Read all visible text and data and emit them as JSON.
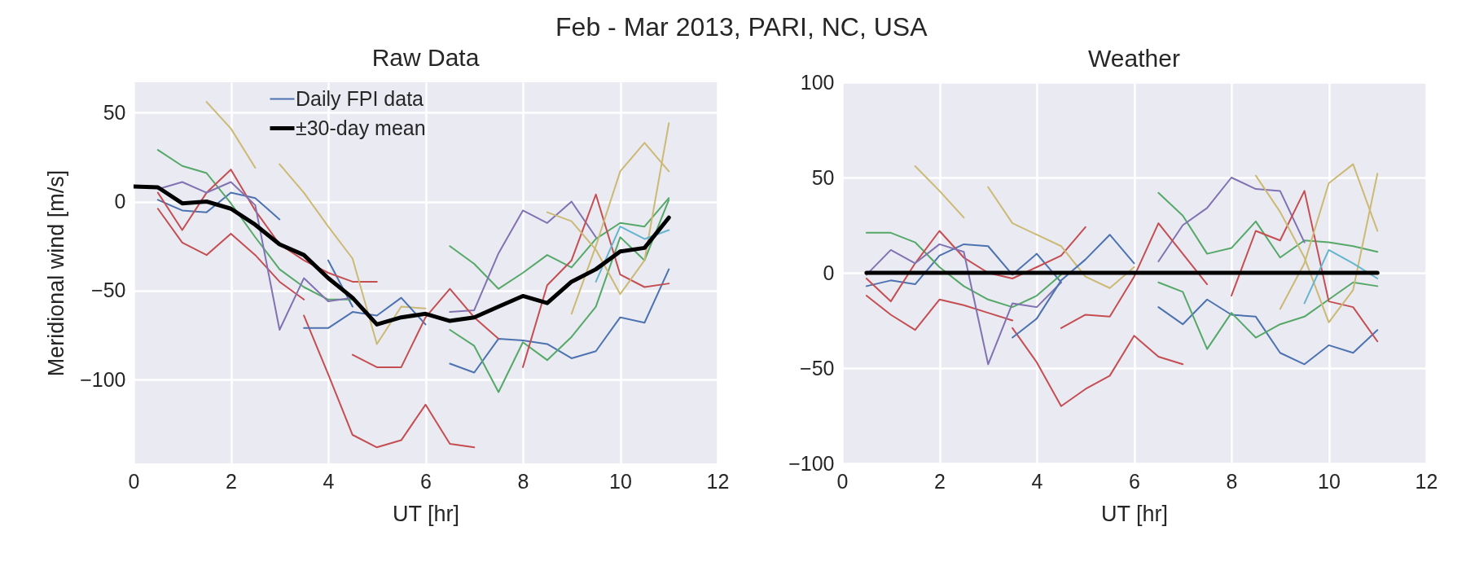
{
  "chart_data": [
    {
      "type": "line",
      "title": "Raw Data",
      "annotations": [
        "Feb - Mar 2013, PARI, NC, USA"
      ],
      "xlabel": "UT [hr]",
      "ylabel": "Meridional wind [m/s]",
      "xlim": [
        0,
        12
      ],
      "xticks": [
        0,
        2,
        4,
        6,
        8,
        10,
        12
      ],
      "ylim": [
        -147,
        67
      ],
      "yticks": [
        -100,
        -50,
        0,
        50
      ],
      "grid": true,
      "legend": "top",
      "series": [
        {
          "name": "Daily FPI data",
          "color": "#4c72b0",
          "x": [
            0.5,
            1,
            1.5,
            2,
            2.5,
            3,
            3.5,
            4,
            4.5
          ],
          "values": [
            1,
            -5,
            -6,
            5,
            2,
            -10,
            null,
            -33,
            -59
          ]
        },
        {
          "color": "#55a868",
          "x": [
            0.5,
            1,
            1.5,
            2,
            2.5,
            3,
            3.5,
            4,
            4.5
          ],
          "values": [
            29,
            20,
            16,
            -1,
            -20,
            -38,
            -48,
            -55,
            -55
          ]
        },
        {
          "color": "#c44e52",
          "x": [
            0.5,
            1,
            1.5,
            2,
            2.5,
            3,
            3.5
          ],
          "values": [
            -4,
            -23,
            -30,
            -18,
            -30,
            -45,
            -55
          ]
        },
        {
          "color": "#c44e52",
          "x": [
            0.5,
            1,
            1.5,
            2,
            2.5,
            3,
            3.5,
            4,
            4.5,
            5
          ],
          "values": [
            5,
            -16,
            5,
            18,
            -5,
            -24,
            -33,
            -40,
            -45,
            -45
          ]
        },
        {
          "color": "#ccb974",
          "x": [
            1.5,
            2,
            2.5
          ],
          "values": [
            56,
            41,
            19
          ]
        },
        {
          "color": "#ccb974",
          "x": [
            3,
            3.5,
            4,
            4.5,
            5,
            5.5,
            6
          ],
          "values": [
            21,
            5,
            -14,
            -32,
            -80,
            -59,
            -60
          ]
        },
        {
          "color": "#8172b2",
          "x": [
            0.5,
            1,
            1.5,
            2,
            2.5,
            3,
            3.5,
            4,
            4.5
          ],
          "values": [
            7,
            11,
            5,
            11,
            -2,
            -72,
            -43,
            -56,
            -54
          ]
        },
        {
          "color": "#c44e52",
          "x": [
            3.5,
            4,
            4.5,
            5,
            5.5,
            6,
            6.5,
            7
          ],
          "values": [
            -64,
            -97,
            -131,
            -138,
            -134,
            -114,
            -136,
            -138
          ]
        },
        {
          "color": "#4c72b0",
          "x": [
            3.5,
            4,
            4.5,
            5,
            5.5,
            6
          ],
          "values": [
            -71,
            -71,
            -62,
            -64,
            -54,
            -69
          ]
        },
        {
          "color": "#4c72b0",
          "x": [
            6.5,
            7,
            7.5,
            8,
            8.5,
            9,
            9.5,
            10,
            10.5,
            11
          ],
          "values": [
            -91,
            -96,
            -77,
            -78,
            -80,
            -88,
            -84,
            -65,
            -68,
            -38
          ]
        },
        {
          "color": "#55a868",
          "x": [
            6.5,
            7,
            7.5,
            8,
            8.5,
            9,
            9.5,
            10,
            10.5,
            11
          ],
          "values": [
            -72,
            -81,
            -107,
            -79,
            -89,
            -76,
            -59,
            -20,
            -33,
            1
          ]
        },
        {
          "color": "#55a868",
          "x": [
            6.5,
            7,
            7.5,
            8,
            8.5,
            9,
            9.5,
            10,
            10.5,
            11
          ],
          "values": [
            -25,
            -35,
            -49,
            -40,
            -30,
            -37,
            -21,
            -12,
            -14,
            2
          ]
        },
        {
          "color": "#8172b2",
          "x": [
            6.5,
            7,
            7.5,
            8,
            8.5,
            9,
            9.5
          ],
          "values": [
            -62,
            -61,
            -29,
            -5,
            -12,
            0,
            -20
          ]
        },
        {
          "color": "#c44e52",
          "x": [
            8,
            8.5,
            9,
            9.5,
            10,
            10.5,
            11
          ],
          "values": [
            -93,
            -47,
            -33,
            4,
            -41,
            -48,
            -46
          ]
        },
        {
          "color": "#ccb974",
          "x": [
            8.5,
            9,
            9.5,
            10,
            10.5,
            11
          ],
          "values": [
            -6,
            -11,
            -27,
            -52,
            -33,
            44
          ]
        },
        {
          "color": "#ccb974",
          "x": [
            9,
            9.5,
            10,
            10.5,
            11
          ],
          "values": [
            -63,
            -25,
            17,
            33,
            17
          ]
        },
        {
          "color": "#64b5cd",
          "x": [
            9.5,
            10,
            10.5,
            11
          ],
          "values": [
            -45,
            -14,
            -21,
            -16
          ]
        },
        {
          "color": "#c44e52",
          "x": [
            4.5,
            5,
            5.5,
            6,
            6.5,
            7,
            7.5
          ],
          "values": [
            -86,
            -93,
            -93,
            -65,
            -49,
            -65,
            -77
          ]
        },
        {
          "name": "±30-day mean",
          "color": "#000000",
          "x": [
            0,
            0.5,
            1,
            1.5,
            2,
            2.5,
            3,
            3.5,
            4,
            4.5,
            5,
            5.5,
            6,
            6.5,
            7,
            7.5,
            8,
            8.5,
            9,
            9.5,
            10,
            10.5,
            11
          ],
          "values": [
            8.5,
            8,
            -1,
            0,
            -4,
            -13,
            -24,
            -30,
            -43,
            -54,
            -69,
            -65,
            -63,
            -67,
            -65,
            -59,
            -53,
            -57,
            -45,
            -38,
            -28,
            -26,
            -9
          ]
        }
      ]
    },
    {
      "type": "line",
      "title": "Weather",
      "xlabel": "UT [hr]",
      "xlim": [
        0,
        12
      ],
      "xticks": [
        0,
        2,
        4,
        6,
        8,
        10,
        12
      ],
      "ylim": [
        -100,
        100
      ],
      "yticks": [
        -100,
        -50,
        0,
        50,
        100
      ],
      "grid": true,
      "series": [
        {
          "color": "#4c72b0",
          "x": [
            0.5,
            1,
            1.5,
            2,
            2.5,
            3,
            3.5,
            4,
            4.5
          ],
          "values": [
            -7,
            -4,
            -6,
            9,
            15,
            14,
            -1,
            10,
            -5
          ]
        },
        {
          "color": "#55a868",
          "x": [
            0.5,
            1,
            1.5,
            2,
            2.5,
            3,
            3.5,
            4,
            4.5
          ],
          "values": [
            21,
            21,
            16,
            3,
            -7,
            -14,
            -18,
            -12,
            -1
          ]
        },
        {
          "color": "#c44e52",
          "x": [
            0.5,
            1,
            1.5,
            2,
            2.5,
            3,
            3.5
          ],
          "values": [
            -12,
            -22,
            -30,
            -14,
            -17,
            -21,
            -25
          ]
        },
        {
          "color": "#c44e52",
          "x": [
            0.5,
            1,
            1.5,
            2,
            2.5,
            3,
            3.5,
            4,
            4.5,
            5
          ],
          "values": [
            -3,
            -15,
            5,
            22,
            8,
            0,
            -3,
            3,
            9,
            24
          ]
        },
        {
          "color": "#ccb974",
          "x": [
            1.5,
            2,
            2.5
          ],
          "values": [
            56,
            43,
            29
          ]
        },
        {
          "color": "#ccb974",
          "x": [
            3,
            3.5,
            4,
            4.5,
            5,
            5.5,
            6
          ],
          "values": [
            45,
            26,
            20,
            14,
            -2,
            -8,
            3
          ]
        },
        {
          "color": "#8172b2",
          "x": [
            0.5,
            1,
            1.5,
            2,
            2.5,
            3,
            3.5,
            4,
            4.5
          ],
          "values": [
            -1,
            12,
            5,
            15,
            11,
            -48,
            -16,
            -18,
            -5
          ]
        },
        {
          "color": "#c44e52",
          "x": [
            3.5,
            4,
            4.5,
            5,
            5.5,
            6,
            6.5,
            7
          ],
          "values": [
            -29,
            -47,
            -70,
            -61,
            -54,
            -33,
            -44,
            -48
          ]
        },
        {
          "color": "#4c72b0",
          "x": [
            3.5,
            4,
            4.5,
            5,
            5.5,
            6
          ],
          "values": [
            -34,
            -24,
            -4,
            7,
            20,
            5
          ]
        },
        {
          "color": "#4c72b0",
          "x": [
            6.5,
            7,
            7.5,
            8,
            8.5,
            9,
            9.5,
            10,
            10.5,
            11
          ],
          "values": [
            -18,
            -27,
            -14,
            -22,
            -23,
            -42,
            -48,
            -38,
            -42,
            -30
          ]
        },
        {
          "color": "#55a868",
          "x": [
            6.5,
            7,
            7.5,
            8,
            8.5,
            9,
            9.5,
            10,
            10.5,
            11
          ],
          "values": [
            -5,
            -10,
            -40,
            -21,
            -34,
            -27,
            -23,
            -14,
            -5,
            -7
          ]
        },
        {
          "color": "#55a868",
          "x": [
            6.5,
            7,
            7.5,
            8,
            8.5,
            9,
            9.5,
            10,
            10.5,
            11
          ],
          "values": [
            42,
            30,
            10,
            13,
            27,
            8,
            17,
            16,
            14,
            11
          ]
        },
        {
          "color": "#8172b2",
          "x": [
            6.5,
            7,
            7.5,
            8,
            8.5,
            9,
            9.5
          ],
          "values": [
            6,
            25,
            34,
            50,
            44,
            43,
            16
          ]
        },
        {
          "color": "#c44e52",
          "x": [
            8,
            8.5,
            9,
            9.5,
            10,
            10.5,
            11
          ],
          "values": [
            -12,
            22,
            17,
            43,
            -15,
            -18,
            -36
          ]
        },
        {
          "color": "#ccb974",
          "x": [
            8.5,
            9,
            9.5,
            10,
            10.5,
            11
          ],
          "values": [
            51,
            32,
            8,
            -26,
            -9,
            52
          ]
        },
        {
          "color": "#ccb974",
          "x": [
            9,
            9.5,
            10,
            10.5,
            11
          ],
          "values": [
            -19,
            5,
            47,
            57,
            22
          ]
        },
        {
          "color": "#64b5cd",
          "x": [
            9.5,
            10,
            10.5,
            11
          ],
          "values": [
            -16,
            12,
            5,
            -3
          ]
        },
        {
          "color": "#c44e52",
          "x": [
            4.5,
            5,
            5.5,
            6,
            6.5,
            7,
            7.5
          ],
          "values": [
            -29,
            -22,
            -23,
            -2,
            26,
            10,
            -6
          ]
        },
        {
          "color": "#000000",
          "x": [
            0.5,
            1,
            1.5,
            2,
            2.5,
            3,
            3.5,
            4,
            4.5,
            5,
            5.5,
            6,
            6.5,
            7,
            7.5,
            8,
            8.5,
            9,
            9.5,
            10,
            10.5,
            11
          ],
          "values": [
            0,
            0,
            0,
            0,
            0,
            0,
            0,
            0,
            0,
            0,
            0,
            0,
            0,
            0,
            0,
            0,
            0,
            0,
            0,
            0,
            0,
            0
          ]
        }
      ]
    }
  ]
}
